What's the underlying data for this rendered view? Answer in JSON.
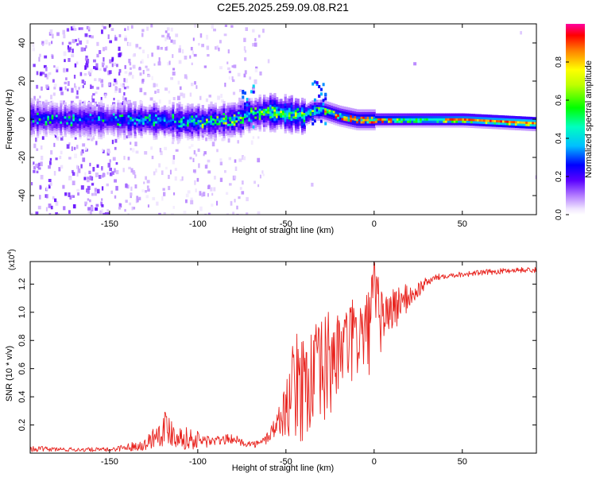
{
  "figure_title": "C2E5.2025.259.09.08.R21",
  "chart_data": [
    {
      "type": "heatmap",
      "title": "C2E5.2025.259.09.08.R21",
      "xlabel": "Height of straight line (km)",
      "ylabel": "Frequency (Hz)",
      "xlim": [
        -195,
        92
      ],
      "ylim": [
        -50,
        50
      ],
      "xticks": [
        -150,
        -100,
        -50,
        0,
        50
      ],
      "xtick_labels": [
        "-150",
        "-100",
        "-50",
        "0",
        "50"
      ],
      "yticks": [
        -40,
        -20,
        0,
        20,
        40
      ],
      "ytick_labels": [
        "-40",
        "-20",
        "0",
        "20",
        "40"
      ],
      "colorbar": {
        "label": "Normalized spectral amplitude",
        "range": [
          0,
          1
        ],
        "ticks": [
          0.0,
          0.2,
          0.4,
          0.6,
          0.8
        ],
        "tick_labels": [
          "0.0",
          "0.2",
          "0.4",
          "0.6",
          "0.8"
        ],
        "colormap": "rainbow"
      },
      "ridge": {
        "description": "dominant frequency ridge",
        "x": [
          -195,
          -170,
          -150,
          -130,
          -110,
          -95,
          -80,
          -70,
          -60,
          -50,
          -40,
          -35,
          -30,
          -20,
          -10,
          0,
          20,
          50,
          92
        ],
        "y": [
          1,
          0,
          0,
          0,
          -1,
          -1,
          0,
          3,
          4,
          3,
          2,
          5,
          5,
          2,
          0,
          0,
          0,
          0,
          -2
        ]
      }
    },
    {
      "type": "line",
      "xlabel": "Height of straight line (km)",
      "ylabel": "SNR (10 * v/v)",
      "y_multiplier": "(x10",
      "y_multiplier_exp": "4",
      "xlim": [
        -195,
        92
      ],
      "ylim": [
        0,
        1.36
      ],
      "xticks": [
        -150,
        -100,
        -50,
        0,
        50
      ],
      "xtick_labels": [
        "-150",
        "-100",
        "-50",
        "0",
        "50"
      ],
      "yticks": [
        0.2,
        0.4,
        0.6,
        0.8,
        1.0,
        1.2
      ],
      "ytick_labels": [
        "0.2",
        "0.4",
        "0.6",
        "0.8",
        "1.0",
        "1.2"
      ],
      "series": [
        {
          "name": "SNR",
          "color": "#e8231e",
          "envelope_x": [
            -195,
            -170,
            -150,
            -130,
            -120,
            -118,
            -110,
            -100,
            -90,
            -80,
            -75,
            -70,
            -65,
            -60,
            -55,
            -50,
            -45,
            -40,
            -35,
            -30,
            -25,
            -20,
            -15,
            -10,
            -5,
            0,
            5,
            10,
            15,
            20,
            25,
            30,
            35,
            40,
            50,
            60,
            70,
            80,
            92
          ],
          "envelope_lo": [
            0.01,
            0.01,
            0.01,
            0.02,
            0.05,
            0.05,
            0.03,
            0.02,
            0.05,
            0.07,
            0.05,
            0.04,
            0.04,
            0.06,
            0.08,
            0.1,
            0.05,
            0.02,
            0.04,
            0.01,
            0.12,
            0.35,
            0.4,
            0.42,
            0.48,
            0.6,
            0.7,
            0.8,
            0.9,
            1.0,
            1.1,
            1.18,
            1.22,
            1.24,
            1.25,
            1.26,
            1.27,
            1.28,
            1.28
          ],
          "envelope_hi": [
            0.05,
            0.04,
            0.04,
            0.1,
            0.3,
            0.32,
            0.2,
            0.16,
            0.12,
            0.14,
            0.1,
            0.09,
            0.09,
            0.17,
            0.3,
            0.5,
            0.85,
            0.86,
            0.9,
            0.95,
            1.05,
            0.98,
            1.06,
            1.12,
            1.1,
            1.36,
            1.15,
            1.18,
            1.2,
            1.2,
            1.22,
            1.25,
            1.27,
            1.28,
            1.29,
            1.3,
            1.31,
            1.32,
            1.32
          ]
        }
      ]
    }
  ]
}
